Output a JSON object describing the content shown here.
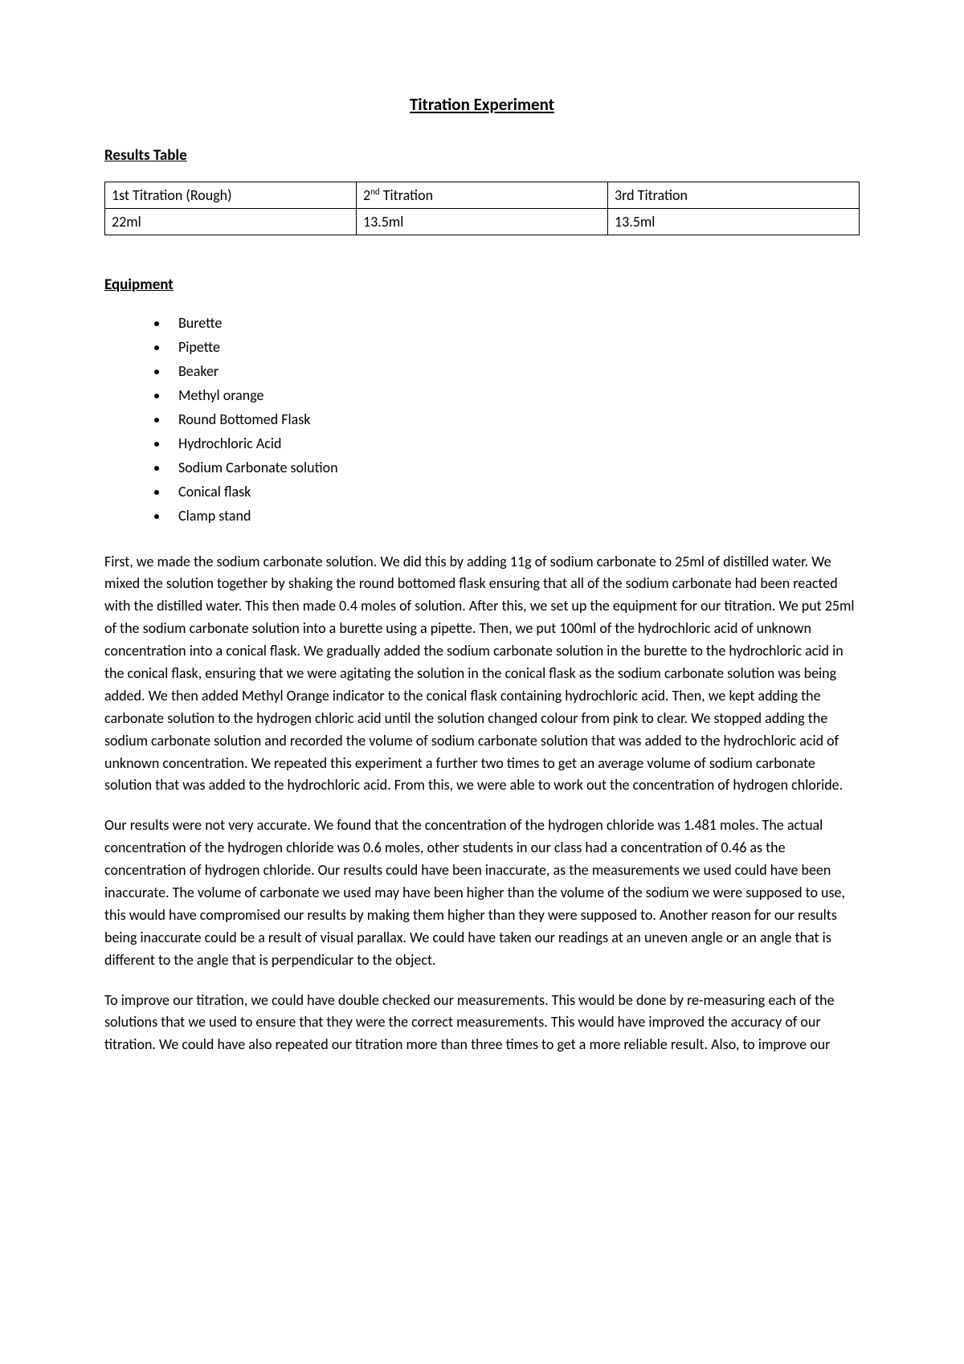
{
  "title": "Titration Experiment",
  "results_section": {
    "heading": "Results Table",
    "table": {
      "headers": {
        "col1": "1st Titration (Rough)",
        "col2_prefix": "2",
        "col2_sup": "nd",
        "col2_suffix": " Titration",
        "col3": "3rd Titration"
      },
      "values": {
        "col1": "22ml",
        "col2": "13.5ml",
        "col3": "13.5ml"
      }
    }
  },
  "equipment_section": {
    "heading": "Equipment",
    "items": [
      "Burette",
      "Pipette",
      "Beaker",
      "Methyl orange",
      "Round Bottomed Flask",
      "Hydrochloric Acid",
      "Sodium Carbonate solution",
      "Conical flask",
      "Clamp stand"
    ]
  },
  "paragraphs": {
    "p1": "First, we made the sodium carbonate solution. We did this by adding 11g of sodium carbonate to 25ml of distilled water. We mixed the solution together by shaking the round bottomed flask ensuring that all of the sodium carbonate had been reacted with the distilled water. This then made 0.4 moles of solution. After this, we set up the equipment for our titration. We put 25ml of the sodium carbonate solution into a burette using a pipette. Then, we put 100ml of the hydrochloric acid of unknown concentration into a conical flask. We gradually added the sodium carbonate solution in the burette to the hydrochloric acid in the conical flask, ensuring that we were agitating the solution in the conical flask as the sodium carbonate solution was being added. We then added Methyl Orange indicator to the conical flask containing hydrochloric acid. Then, we kept adding the carbonate solution to the hydrogen chloric acid until the solution changed colour from pink to clear. We stopped adding the sodium carbonate solution and recorded the volume of sodium carbonate solution that was added to the hydrochloric acid of unknown concentration. We repeated this experiment a further two times to get an average volume of sodium carbonate solution that was added to the hydrochloric acid. From this, we were able to work out the concentration of hydrogen chloride.",
    "p2": "Our results were not very accurate. We found that the concentration of the hydrogen chloride was 1.481 moles. The actual concentration of the hydrogen chloride was 0.6 moles, other students in our class had a concentration of 0.46 as the concentration of hydrogen chloride. Our results could have been inaccurate, as the measurements we used could have been inaccurate. The volume of carbonate we used may have been higher than the volume of the sodium we were supposed to use, this would have compromised our results by making them higher than they were supposed to. Another reason for our results being inaccurate could be a result of visual parallax. We could have taken our readings at an uneven angle or an angle that is different to the angle that is perpendicular to the object.",
    "p3": "To improve our titration, we could have double checked our measurements. This would be done by re-measuring each of the solutions that we used to ensure that they were the correct measurements.  This would have improved the accuracy of our titration. We could have also repeated our titration more than three times to get a more reliable result. Also, to improve our"
  }
}
